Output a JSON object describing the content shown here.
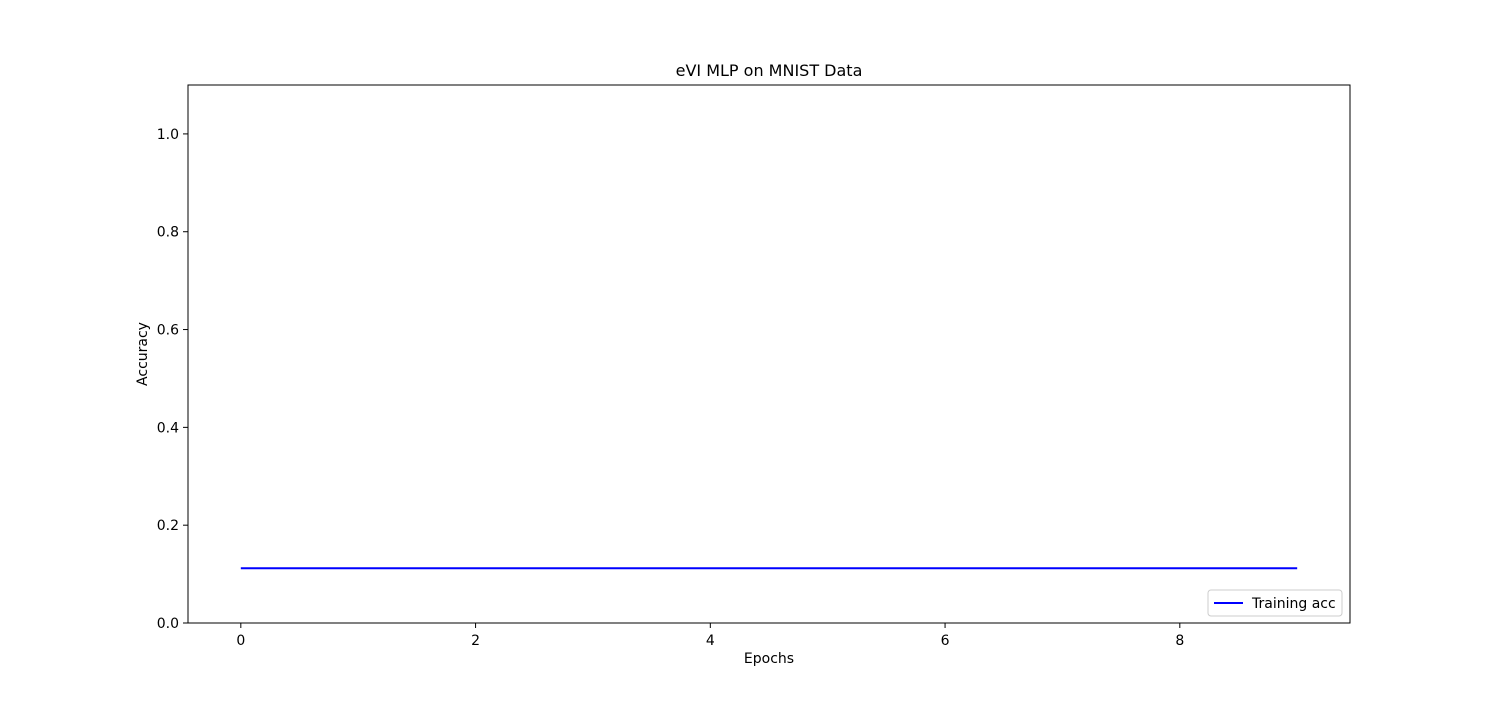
{
  "chart_data": {
    "type": "line",
    "title": "eVI MLP on MNIST Data",
    "xlabel": "Epochs",
    "ylabel": "Accuracy",
    "xlim": [
      -0.45,
      9.45
    ],
    "ylim": [
      0.0,
      1.1
    ],
    "x_ticks": [
      0,
      2,
      4,
      6,
      8
    ],
    "y_ticks": [
      0.0,
      0.2,
      0.4,
      0.6,
      0.8,
      1.0
    ],
    "x_tick_labels": [
      "0",
      "2",
      "4",
      "6",
      "8"
    ],
    "y_tick_labels": [
      "0.0",
      "0.2",
      "0.4",
      "0.6",
      "0.8",
      "1.0"
    ],
    "grid": false,
    "legend_position": "lower-right",
    "series": [
      {
        "name": "Training acc",
        "color": "#0000ff",
        "x": [
          0,
          1,
          2,
          3,
          4,
          5,
          6,
          7,
          8,
          9
        ],
        "values": [
          0.112,
          0.112,
          0.112,
          0.112,
          0.112,
          0.112,
          0.112,
          0.112,
          0.112,
          0.112
        ]
      }
    ]
  }
}
